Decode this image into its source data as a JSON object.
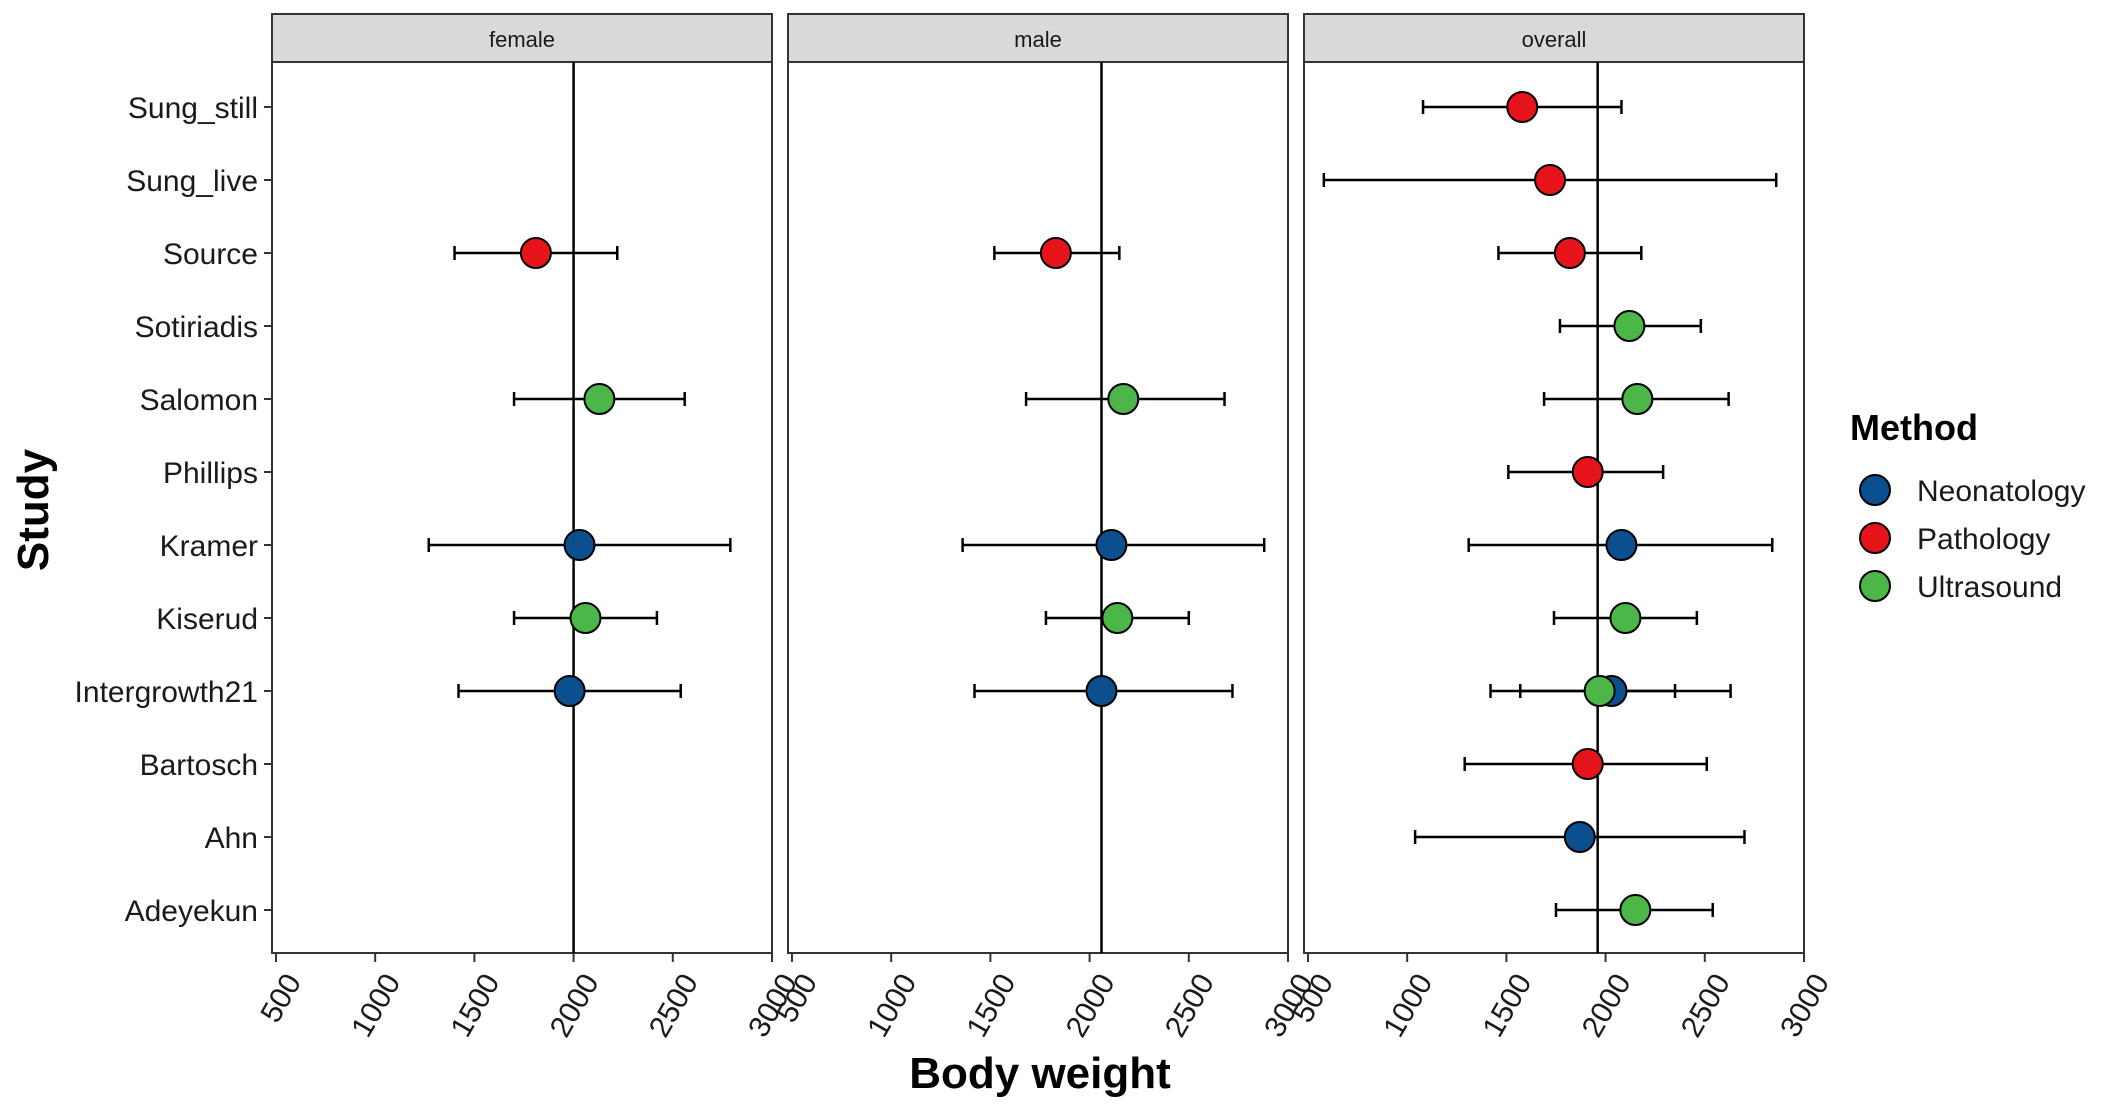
{
  "chart_data": {
    "type": "scatter",
    "subtype": "forest-plot-with-error-bars",
    "xlabel": "Body weight",
    "ylabel": "Study",
    "xlim": [
      480,
      3000
    ],
    "x_ticks": [
      500,
      1000,
      1500,
      2000,
      2500,
      3000
    ],
    "x_tick_labels": [
      "500",
      "1000",
      "1500",
      "2000",
      "2500",
      "3000"
    ],
    "studies": [
      "Sung_still",
      "Sung_live",
      "Source",
      "Sotiriadis",
      "Salomon",
      "Phillips",
      "Kramer",
      "Kiserud",
      "Intergrowth21",
      "Bartosch",
      "Ahn",
      "Adeyekun"
    ],
    "grid": false,
    "legend": {
      "title": "Method",
      "placement": "right",
      "entries": [
        {
          "name": "Neonatology",
          "color": "#0b4f8f"
        },
        {
          "name": "Pathology",
          "color": "#e8141b"
        },
        {
          "name": "Ultrasound",
          "color": "#4cb748"
        }
      ]
    },
    "panels": [
      {
        "strip": "female",
        "reference_line": 2000,
        "points": [
          {
            "study": "Source",
            "method": "Pathology",
            "x": 1810,
            "low": 1400,
            "high": 2220
          },
          {
            "study": "Salomon",
            "method": "Ultrasound",
            "x": 2130,
            "low": 1700,
            "high": 2560
          },
          {
            "study": "Kramer",
            "method": "Neonatology",
            "x": 2030,
            "low": 1270,
            "high": 2790
          },
          {
            "study": "Kiserud",
            "method": "Ultrasound",
            "x": 2060,
            "low": 1700,
            "high": 2420
          },
          {
            "study": "Intergrowth21",
            "method": "Neonatology",
            "x": 1980,
            "low": 1420,
            "high": 2540
          }
        ]
      },
      {
        "strip": "male",
        "reference_line": 2060,
        "points": [
          {
            "study": "Source",
            "method": "Pathology",
            "x": 1830,
            "low": 1520,
            "high": 2150
          },
          {
            "study": "Salomon",
            "method": "Ultrasound",
            "x": 2170,
            "low": 1680,
            "high": 2680
          },
          {
            "study": "Kramer",
            "method": "Neonatology",
            "x": 2110,
            "low": 1360,
            "high": 2880
          },
          {
            "study": "Kiserud",
            "method": "Ultrasound",
            "x": 2140,
            "low": 1780,
            "high": 2500
          },
          {
            "study": "Intergrowth21",
            "method": "Neonatology",
            "x": 2060,
            "low": 1420,
            "high": 2720
          }
        ]
      },
      {
        "strip": "overall",
        "reference_line": 1960,
        "points": [
          {
            "study": "Sung_still",
            "method": "Pathology",
            "x": 1580,
            "low": 1080,
            "high": 2080
          },
          {
            "study": "Sung_live",
            "method": "Pathology",
            "x": 1720,
            "low": 580,
            "high": 2860
          },
          {
            "study": "Source",
            "method": "Pathology",
            "x": 1820,
            "low": 1460,
            "high": 2180
          },
          {
            "study": "Sotiriadis",
            "method": "Ultrasound",
            "x": 2120,
            "low": 1770,
            "high": 2480
          },
          {
            "study": "Salomon",
            "method": "Ultrasound",
            "x": 2160,
            "low": 1690,
            "high": 2620
          },
          {
            "study": "Phillips",
            "method": "Pathology",
            "x": 1910,
            "low": 1510,
            "high": 2290
          },
          {
            "study": "Kramer",
            "method": "Neonatology",
            "x": 2080,
            "low": 1310,
            "high": 2840
          },
          {
            "study": "Kiserud",
            "method": "Ultrasound",
            "x": 2100,
            "low": 1740,
            "high": 2460
          },
          {
            "study": "Intergrowth21",
            "method": "Neonatology",
            "x": 2030,
            "low": 1420,
            "high": 2630
          },
          {
            "study": "Intergrowth21",
            "method": "Ultrasound",
            "x": 1970,
            "low": 1570,
            "high": 2350
          },
          {
            "study": "Bartosch",
            "method": "Pathology",
            "x": 1910,
            "low": 1290,
            "high": 2510
          },
          {
            "study": "Ahn",
            "method": "Neonatology",
            "x": 1870,
            "low": 1040,
            "high": 2700
          },
          {
            "study": "Adeyekun",
            "method": "Ultrasound",
            "x": 2150,
            "low": 1750,
            "high": 2540
          }
        ]
      }
    ]
  }
}
